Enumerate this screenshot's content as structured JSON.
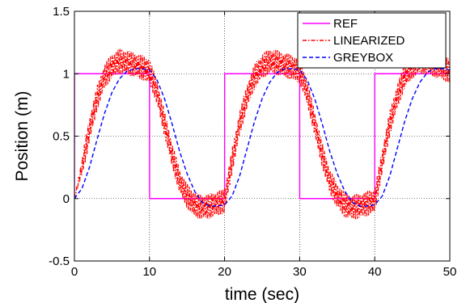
{
  "chart_data": {
    "type": "line",
    "xlabel": "time (sec)",
    "ylabel": "Position (m)",
    "xlim": [
      0,
      50
    ],
    "ylim": [
      -0.5,
      1.5
    ],
    "x_ticks": [
      "0",
      "10",
      "20",
      "30",
      "40",
      "50"
    ],
    "y_ticks": [
      "-0.5",
      "0",
      "0.5",
      "1",
      "1.5"
    ],
    "grid": true,
    "legend_position": "top-right",
    "series": [
      {
        "name": "REF",
        "color": "#ff00ff",
        "style": "solid",
        "x": [
          0,
          0.01,
          10,
          10.01,
          20,
          20.01,
          30,
          30.01,
          40,
          40.01,
          50
        ],
        "y": [
          0,
          1,
          1,
          0,
          0,
          1,
          1,
          0,
          0,
          1,
          1
        ]
      },
      {
        "name": "LINEARIZED",
        "color": "#ff0000",
        "style": "dashdot",
        "x": [
          0,
          1,
          2,
          3,
          4,
          5,
          6,
          7,
          8,
          9,
          10,
          11,
          12,
          13,
          14,
          15,
          16,
          17,
          18,
          19,
          20,
          21,
          22,
          23,
          24,
          25,
          26,
          27,
          28,
          29,
          30,
          31,
          32,
          33,
          34,
          35,
          36,
          37,
          38,
          39,
          40,
          41,
          42,
          43,
          44,
          45,
          46,
          47,
          48,
          49,
          50
        ],
        "y": [
          0,
          0.25,
          0.55,
          0.8,
          0.98,
          1.06,
          1.1,
          1.09,
          1.07,
          1.05,
          1.02,
          0.85,
          0.6,
          0.35,
          0.14,
          0.02,
          -0.05,
          -0.07,
          -0.06,
          -0.04,
          -0.02,
          0.3,
          0.6,
          0.82,
          0.98,
          1.06,
          1.1,
          1.09,
          1.07,
          1.05,
          1.02,
          0.85,
          0.6,
          0.35,
          0.14,
          0.02,
          -0.05,
          -0.07,
          -0.06,
          -0.04,
          -0.02,
          0.3,
          0.6,
          0.82,
          0.98,
          1.06,
          1.1,
          1.09,
          1.07,
          1.05,
          1.02
        ],
        "oscillation_amplitude": 0.1
      },
      {
        "name": "GREYBOX",
        "color": "#0000ff",
        "style": "dashed",
        "x": [
          0,
          1,
          2,
          3,
          4,
          5,
          6,
          7,
          8,
          9,
          10,
          11,
          12,
          13,
          14,
          15,
          16,
          17,
          18,
          19,
          20,
          21,
          22,
          23,
          24,
          25,
          26,
          27,
          28,
          29,
          30,
          31,
          32,
          33,
          34,
          35,
          36,
          37,
          38,
          39,
          40,
          41,
          42,
          43,
          44,
          45,
          46,
          47,
          48,
          49,
          50
        ],
        "y": [
          0,
          0.08,
          0.25,
          0.47,
          0.68,
          0.85,
          0.96,
          1.02,
          1.04,
          1.04,
          1.03,
          0.95,
          0.8,
          0.6,
          0.38,
          0.2,
          0.06,
          -0.03,
          -0.06,
          -0.06,
          -0.05,
          0.02,
          0.18,
          0.4,
          0.62,
          0.8,
          0.93,
          1.01,
          1.04,
          1.04,
          1.03,
          0.95,
          0.8,
          0.6,
          0.38,
          0.2,
          0.06,
          -0.03,
          -0.06,
          -0.06,
          -0.05,
          0.02,
          0.18,
          0.4,
          0.62,
          0.8,
          0.93,
          1.01,
          1.04,
          1.04,
          1.03
        ]
      }
    ]
  }
}
